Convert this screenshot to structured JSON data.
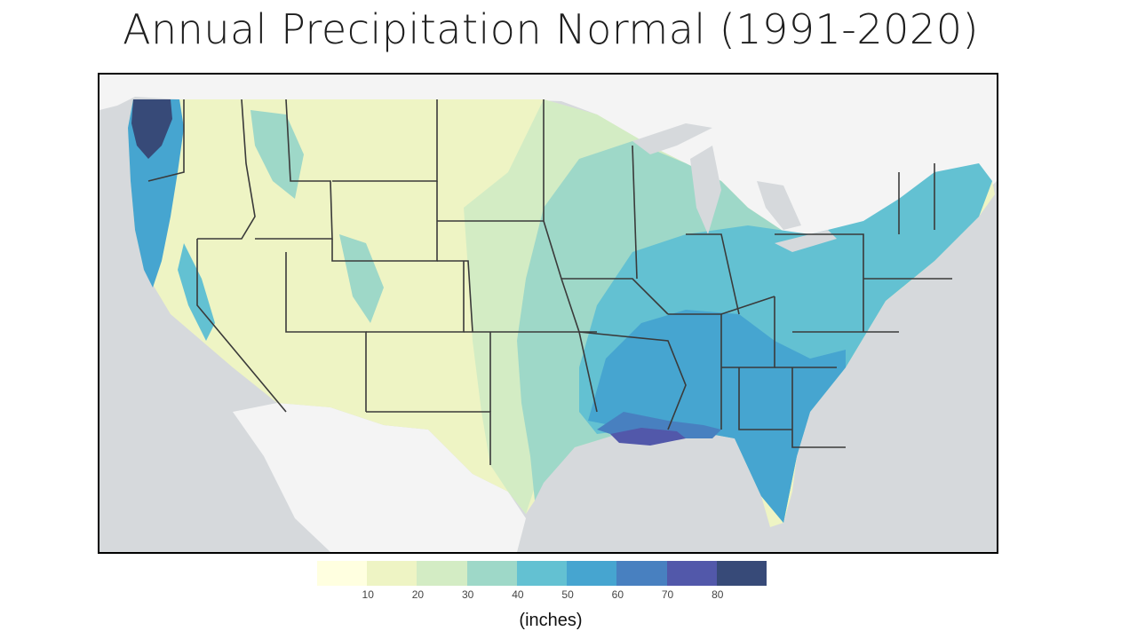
{
  "title": "Annual Precipitation Normal (1991-2020)",
  "map": {
    "region": "Contiguous United States",
    "colors": {
      "ocean": "#d6d9dc",
      "land_outside": "#f4f4f4",
      "state_border": "#3a3a3a"
    }
  },
  "legend": {
    "units": "(inches)",
    "bins": [
      {
        "color": "#ffffe0"
      },
      {
        "color": "#eef4c4",
        "tick": "10"
      },
      {
        "color": "#d3ecc4",
        "tick": "20"
      },
      {
        "color": "#9ed8c8",
        "tick": "30"
      },
      {
        "color": "#63c1d2",
        "tick": "40"
      },
      {
        "color": "#46a5d0",
        "tick": "50"
      },
      {
        "color": "#4880c0",
        "tick": "60"
      },
      {
        "color": "#5258aa",
        "tick": "70"
      },
      {
        "color": "#374a78",
        "tick": "80"
      }
    ]
  }
}
